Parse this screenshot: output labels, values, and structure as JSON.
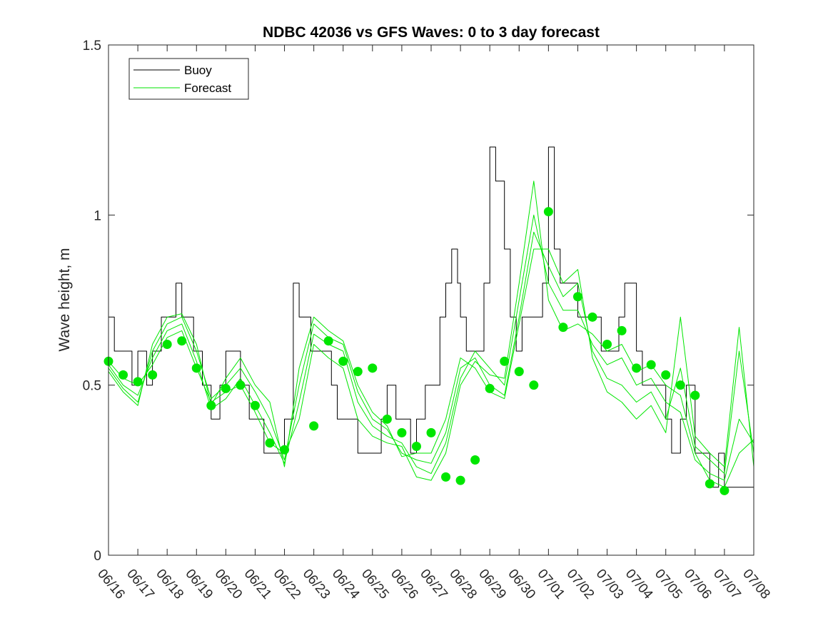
{
  "chart_data": {
    "type": "line",
    "title": "NDBC 42036 vs GFS Waves: 0 to 3 day forecast",
    "xlabel": "",
    "ylabel": "Wave height, m",
    "ylim": [
      0,
      1.5
    ],
    "xlim": [
      "06/16",
      "07/08"
    ],
    "yticks": [
      "0",
      "0.5",
      "1",
      "1.5"
    ],
    "xticks": [
      "06/16",
      "06/17",
      "06/18",
      "06/19",
      "06/20",
      "06/21",
      "06/22",
      "06/23",
      "06/24",
      "06/25",
      "06/26",
      "06/27",
      "06/28",
      "06/29",
      "06/30",
      "07/01",
      "07/02",
      "07/03",
      "07/04",
      "07/05",
      "07/06",
      "07/07",
      "07/08"
    ],
    "grid": false,
    "legend": {
      "placement": "top-left",
      "entries": [
        {
          "label": "Buoy",
          "color": "#000000"
        },
        {
          "label": "Forecast",
          "color": "#00e600"
        }
      ]
    },
    "colors": {
      "buoy": "#000000",
      "forecast": "#00e600",
      "markers": "#00e600"
    },
    "series": [
      {
        "name": "Buoy",
        "x": [
          0.0,
          0.2,
          0.3,
          0.5,
          0.8,
          1.0,
          1.3,
          1.5,
          1.8,
          2.0,
          2.3,
          2.5,
          2.7,
          2.9,
          3.2,
          3.5,
          3.8,
          4.0,
          4.3,
          4.5,
          4.8,
          5.0,
          5.3,
          5.5,
          5.8,
          6.0,
          6.3,
          6.5,
          6.7,
          6.9,
          7.1,
          7.2,
          7.4,
          7.6,
          7.8,
          8.0,
          8.3,
          8.5,
          8.8,
          9.0,
          9.3,
          9.5,
          9.8,
          10.0,
          10.3,
          10.5,
          10.8,
          11.0,
          11.3,
          11.5,
          11.7,
          11.9,
          12.0,
          12.2,
          12.5,
          12.8,
          13.0,
          13.2,
          13.5,
          13.7,
          13.9,
          14.1,
          14.3,
          14.5,
          14.8,
          15.0,
          15.2,
          15.4,
          15.6,
          15.8,
          16.0,
          16.3,
          16.5,
          16.8,
          17.0,
          17.2,
          17.4,
          17.6,
          17.8,
          18.0,
          18.2,
          18.5,
          18.7,
          19.0,
          19.2,
          19.5,
          19.7,
          20.0,
          20.2,
          20.5,
          20.8,
          21.0,
          21.2,
          21.5,
          21.8,
          22.0
        ],
        "values": [
          0.7,
          0.6,
          0.6,
          0.6,
          0.5,
          0.6,
          0.5,
          0.6,
          0.7,
          0.7,
          0.8,
          0.7,
          0.7,
          0.6,
          0.5,
          0.4,
          0.5,
          0.6,
          0.6,
          0.5,
          0.4,
          0.4,
          0.3,
          0.3,
          0.3,
          0.4,
          0.8,
          0.7,
          0.7,
          0.6,
          0.6,
          0.6,
          0.6,
          0.5,
          0.4,
          0.4,
          0.4,
          0.3,
          0.3,
          0.3,
          0.4,
          0.5,
          0.4,
          0.4,
          0.3,
          0.4,
          0.5,
          0.5,
          0.7,
          0.8,
          0.9,
          0.8,
          0.7,
          0.6,
          0.6,
          0.8,
          1.2,
          1.1,
          0.9,
          0.7,
          0.6,
          0.7,
          0.7,
          0.7,
          0.8,
          1.2,
          0.9,
          0.8,
          0.8,
          0.8,
          0.7,
          0.7,
          0.7,
          0.6,
          0.6,
          0.6,
          0.7,
          0.8,
          0.8,
          0.6,
          0.5,
          0.5,
          0.5,
          0.4,
          0.3,
          0.4,
          0.5,
          0.3,
          0.3,
          0.2,
          0.3,
          0.2,
          0.2,
          0.2,
          0.2,
          0.2
        ]
      },
      {
        "name": "",
        "x": [
          0.0,
          0.5,
          1.0,
          1.5,
          2.0,
          2.5,
          3.0,
          3.5,
          4.0,
          4.5,
          5.0,
          5.5,
          6.0,
          6.5,
          7.0,
          7.5,
          8.0,
          8.5,
          9.0,
          9.5,
          10.0,
          10.5,
          11.0,
          11.5,
          12.0,
          12.5,
          13.0,
          13.5,
          14.0,
          14.5,
          15.0,
          15.5,
          16.0,
          16.5,
          17.0,
          17.5,
          18.0,
          18.5,
          19.0,
          19.5,
          20.0,
          20.5,
          21.0,
          21.5,
          22.0
        ],
        "values": [
          0.57,
          0.52,
          0.5,
          0.56,
          0.64,
          0.66,
          0.55,
          0.45,
          0.48,
          0.5,
          0.42,
          0.33,
          0.3,
          0.4,
          0.62,
          0.58,
          0.55,
          0.4,
          0.35,
          0.33,
          0.32,
          0.23,
          0.22,
          0.3,
          0.5,
          0.57,
          0.53,
          0.52,
          0.8,
          1.1,
          0.75,
          0.66,
          0.68,
          0.65,
          0.6,
          0.62,
          0.54,
          0.56,
          0.5,
          0.47,
          0.3,
          0.22,
          0.2,
          0.3,
          0.34
        ]
      },
      {
        "name": "",
        "x": [
          0.0,
          0.5,
          1.0,
          1.5,
          2.0,
          2.5,
          3.0,
          3.5,
          4.0,
          4.5,
          5.0,
          5.5,
          6.0,
          6.5,
          7.0,
          7.5,
          8.0,
          8.5,
          9.0,
          9.5,
          10.0,
          10.5,
          11.0,
          11.5,
          12.0,
          12.5,
          13.0,
          13.5,
          14.0,
          14.5,
          15.0,
          15.5,
          16.0,
          16.5,
          17.0,
          17.5,
          18.0,
          18.5,
          19.0,
          19.5,
          20.0,
          20.5,
          21.0,
          21.5,
          22.0
        ],
        "values": [
          0.56,
          0.5,
          0.47,
          0.58,
          0.66,
          0.68,
          0.57,
          0.43,
          0.46,
          0.52,
          0.44,
          0.36,
          0.27,
          0.45,
          0.65,
          0.62,
          0.6,
          0.45,
          0.38,
          0.35,
          0.33,
          0.26,
          0.24,
          0.33,
          0.52,
          0.6,
          0.55,
          0.5,
          0.75,
          1.0,
          0.8,
          0.72,
          0.72,
          0.62,
          0.56,
          0.58,
          0.5,
          0.52,
          0.45,
          0.42,
          0.28,
          0.24,
          0.22,
          0.4,
          0.33
        ]
      },
      {
        "name": "",
        "x": [
          0.0,
          0.5,
          1.0,
          1.5,
          2.0,
          2.5,
          3.0,
          3.5,
          4.0,
          4.5,
          5.0,
          5.5,
          6.0,
          6.5,
          7.0,
          7.5,
          8.0,
          8.5,
          9.0,
          9.5,
          10.0,
          10.5,
          11.0,
          11.5,
          12.0,
          12.5,
          13.0,
          13.5,
          14.0,
          14.5,
          15.0,
          15.5,
          16.0,
          16.5,
          17.0,
          17.5,
          18.0,
          18.5,
          19.0,
          19.5,
          20.0,
          20.5,
          21.0,
          21.5,
          22.0
        ],
        "values": [
          0.55,
          0.49,
          0.45,
          0.6,
          0.68,
          0.7,
          0.6,
          0.46,
          0.5,
          0.55,
          0.48,
          0.4,
          0.28,
          0.5,
          0.68,
          0.64,
          0.62,
          0.48,
          0.4,
          0.37,
          0.3,
          0.28,
          0.27,
          0.36,
          0.55,
          0.58,
          0.5,
          0.47,
          0.7,
          0.95,
          0.85,
          0.76,
          0.8,
          0.6,
          0.52,
          0.5,
          0.45,
          0.48,
          0.4,
          0.55,
          0.32,
          0.28,
          0.24,
          0.6,
          0.3
        ]
      },
      {
        "name": "",
        "x": [
          0.0,
          0.5,
          1.0,
          1.5,
          2.0,
          2.5,
          3.0,
          3.5,
          4.0,
          4.5,
          5.0,
          5.5,
          6.0,
          6.5,
          7.0,
          7.5,
          8.0,
          8.5,
          9.0,
          9.5,
          10.0,
          10.5,
          11.0,
          11.5,
          12.0,
          12.5,
          13.0,
          13.5,
          14.0,
          14.5,
          15.0,
          15.5,
          16.0,
          16.5,
          17.0,
          17.5,
          18.0,
          18.5,
          19.0,
          19.5,
          20.0,
          20.5,
          21.0,
          21.5,
          22.0
        ],
        "values": [
          0.54,
          0.48,
          0.44,
          0.62,
          0.7,
          0.71,
          0.62,
          0.44,
          0.52,
          0.58,
          0.5,
          0.45,
          0.26,
          0.55,
          0.7,
          0.66,
          0.63,
          0.5,
          0.42,
          0.38,
          0.29,
          0.3,
          0.3,
          0.4,
          0.58,
          0.55,
          0.48,
          0.46,
          0.68,
          0.9,
          0.9,
          0.8,
          0.84,
          0.58,
          0.48,
          0.45,
          0.4,
          0.44,
          0.36,
          0.7,
          0.35,
          0.3,
          0.26,
          0.67,
          0.26
        ]
      }
    ],
    "markers": [
      {
        "x": 0.0,
        "y": 0.57
      },
      {
        "x": 0.5,
        "y": 0.53
      },
      {
        "x": 1.0,
        "y": 0.51
      },
      {
        "x": 1.5,
        "y": 0.53
      },
      {
        "x": 2.0,
        "y": 0.62
      },
      {
        "x": 2.5,
        "y": 0.63
      },
      {
        "x": 3.0,
        "y": 0.55
      },
      {
        "x": 3.5,
        "y": 0.44
      },
      {
        "x": 4.0,
        "y": 0.49
      },
      {
        "x": 4.5,
        "y": 0.5
      },
      {
        "x": 5.0,
        "y": 0.44
      },
      {
        "x": 5.5,
        "y": 0.33
      },
      {
        "x": 6.0,
        "y": 0.31
      },
      {
        "x": 7.0,
        "y": 0.38
      },
      {
        "x": 7.5,
        "y": 0.63
      },
      {
        "x": 8.0,
        "y": 0.57
      },
      {
        "x": 8.5,
        "y": 0.54
      },
      {
        "x": 9.0,
        "y": 0.55
      },
      {
        "x": 9.5,
        "y": 0.4
      },
      {
        "x": 10.0,
        "y": 0.36
      },
      {
        "x": 10.5,
        "y": 0.32
      },
      {
        "x": 11.0,
        "y": 0.36
      },
      {
        "x": 11.5,
        "y": 0.23
      },
      {
        "x": 12.0,
        "y": 0.22
      },
      {
        "x": 12.5,
        "y": 0.28
      },
      {
        "x": 13.0,
        "y": 0.49
      },
      {
        "x": 13.5,
        "y": 0.57
      },
      {
        "x": 14.0,
        "y": 0.54
      },
      {
        "x": 14.5,
        "y": 0.5
      },
      {
        "x": 15.0,
        "y": 1.01
      },
      {
        "x": 15.5,
        "y": 0.67
      },
      {
        "x": 16.0,
        "y": 0.76
      },
      {
        "x": 16.5,
        "y": 0.7
      },
      {
        "x": 17.0,
        "y": 0.62
      },
      {
        "x": 17.5,
        "y": 0.66
      },
      {
        "x": 18.0,
        "y": 0.55
      },
      {
        "x": 18.5,
        "y": 0.56
      },
      {
        "x": 19.0,
        "y": 0.53
      },
      {
        "x": 19.5,
        "y": 0.5
      },
      {
        "x": 20.0,
        "y": 0.47
      },
      {
        "x": 20.5,
        "y": 0.21
      },
      {
        "x": 21.0,
        "y": 0.19
      }
    ]
  }
}
